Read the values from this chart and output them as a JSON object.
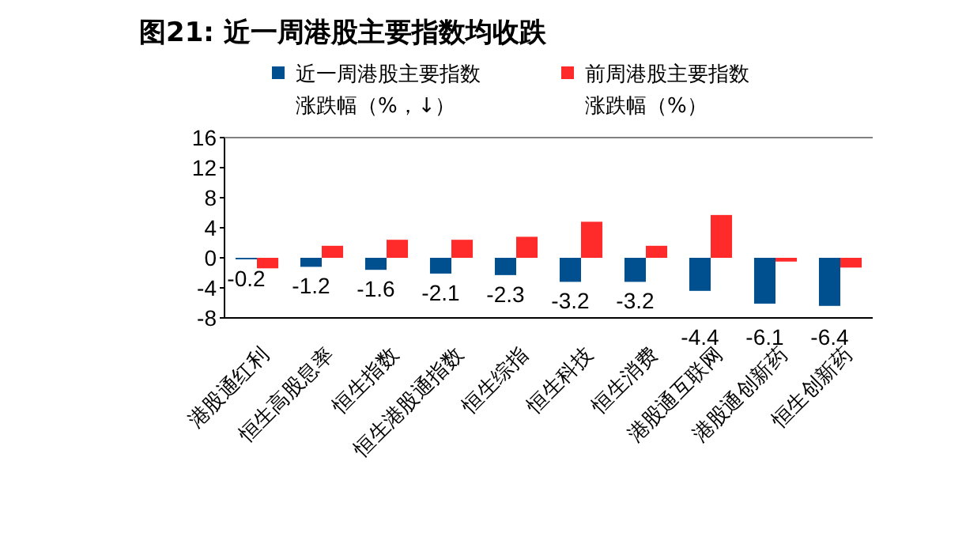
{
  "chart_data": {
    "type": "bar",
    "title": "图21:  近一周港股主要指数均收跌",
    "categories": [
      "港股通红利",
      "恒生高股息率",
      "恒生指数",
      "恒生港股通指数",
      "恒生综指",
      "恒生科技",
      "恒生消费",
      "港股通互联网",
      "港股通创新药",
      "恒生创新药"
    ],
    "series": [
      {
        "name": "近一周港股主要指数涨跌幅（%，↓）",
        "color": "#00508f",
        "values": [
          -0.2,
          -1.2,
          -1.6,
          -2.1,
          -2.3,
          -3.2,
          -3.2,
          -4.4,
          -6.1,
          -6.4
        ],
        "value_labels": [
          "-0.2",
          "-1.2",
          "-1.6",
          "-2.1",
          "-2.3",
          "-3.2",
          "-3.2",
          "-4.4",
          "-6.1",
          "-6.4"
        ]
      },
      {
        "name": "前周港股主要指数涨跌幅（%）",
        "color": "#ff2a2a",
        "values": [
          -1.4,
          1.6,
          2.4,
          2.4,
          2.8,
          4.8,
          1.6,
          5.7,
          -0.5,
          -1.3
        ]
      }
    ],
    "ylim": [
      -8,
      16
    ],
    "yticks": [
      -8,
      -4,
      0,
      4,
      8,
      12,
      16
    ],
    "grid": false,
    "legend": "top"
  }
}
